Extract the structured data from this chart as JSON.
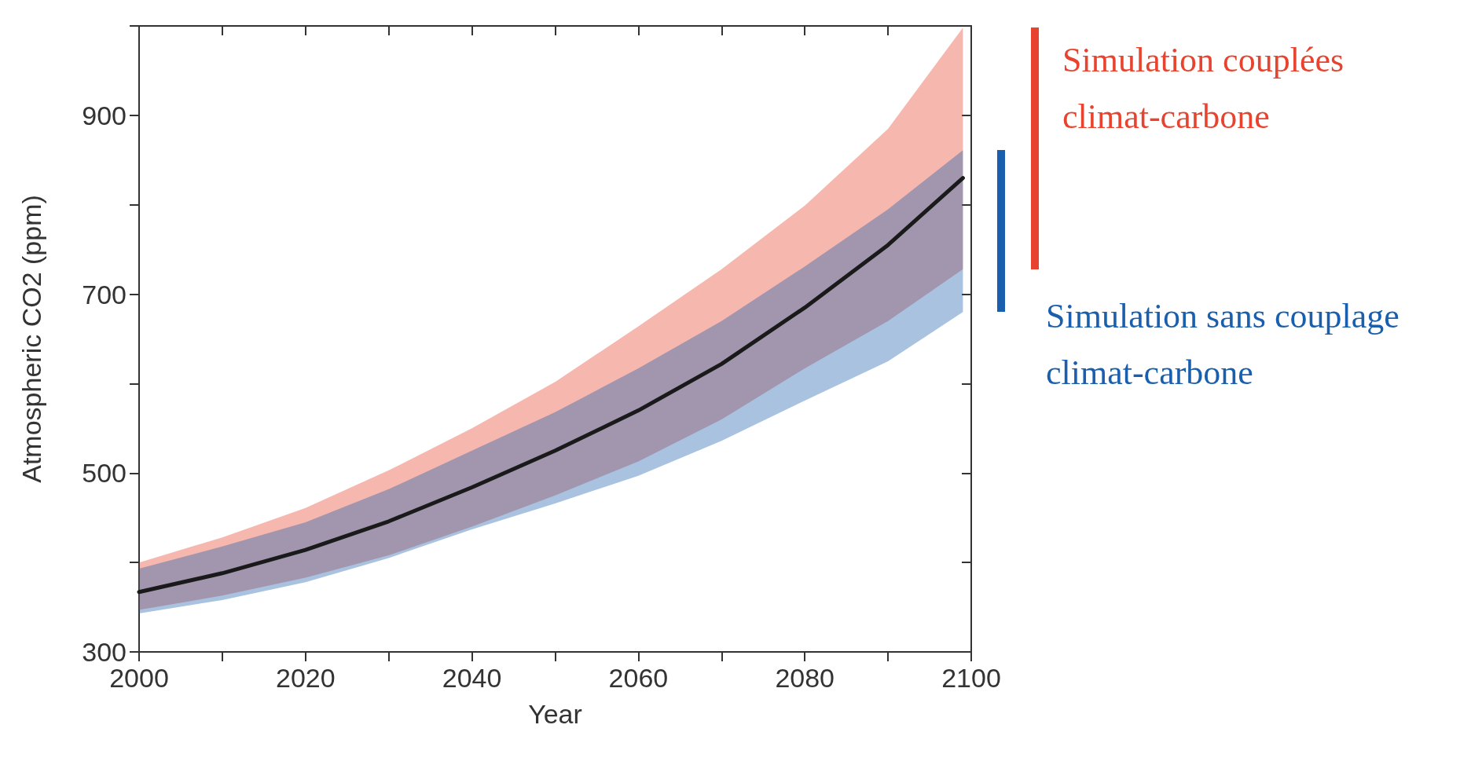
{
  "chart_data": {
    "type": "line",
    "xlabel": "Year",
    "ylabel": "Atmospheric CO2 (ppm)",
    "x": [
      2000,
      2010,
      2020,
      2030,
      2040,
      2050,
      2060,
      2070,
      2080,
      2090,
      2099
    ],
    "xlim": [
      2000,
      2100
    ],
    "xticks": [
      2000,
      {
        "value": 2010,
        "label": null
      },
      2020,
      {
        "value": 2030,
        "label": null
      },
      2040,
      {
        "value": 2050,
        "label": null
      },
      2060,
      {
        "value": 2070,
        "label": null
      },
      2080,
      {
        "value": 2090,
        "label": null
      },
      2100
    ],
    "ylim": [
      300,
      1000
    ],
    "yticks": [
      300,
      {
        "value": 400,
        "label": null
      },
      500,
      {
        "value": 600,
        "label": null
      },
      700,
      {
        "value": 800,
        "label": null
      },
      900,
      {
        "value": 1000,
        "label": null
      }
    ],
    "grid": false,
    "series": [
      {
        "color": "#1a1a1a",
        "values": [
          367,
          388,
          414,
          446,
          484,
          525,
          570,
          622,
          685,
          755,
          830
        ]
      },
      {
        "name": "Simulation couplées climat-carbone",
        "color": "#e8432e",
        "values": [
          null,
          null,
          null,
          null,
          null,
          null,
          null,
          null,
          null,
          null,
          null
        ],
        "lower": [
          347,
          363,
          383,
          408,
          440,
          475,
          513,
          560,
          617,
          670,
          728
        ],
        "upper": [
          400,
          428,
          461,
          503,
          550,
          602,
          664,
          728,
          799,
          885,
          998
        ]
      },
      {
        "name": "Simulation sans couplage climat-carbone",
        "color": "#1a5fad",
        "values": [
          null,
          null,
          null,
          null,
          null,
          null,
          null,
          null,
          null,
          null,
          null
        ],
        "lower": [
          343,
          358,
          378,
          405,
          437,
          466,
          497,
          536,
          581,
          625,
          680
        ],
        "upper": [
          393,
          418,
          445,
          482,
          525,
          568,
          617,
          670,
          731,
          795,
          861
        ]
      }
    ]
  }
}
